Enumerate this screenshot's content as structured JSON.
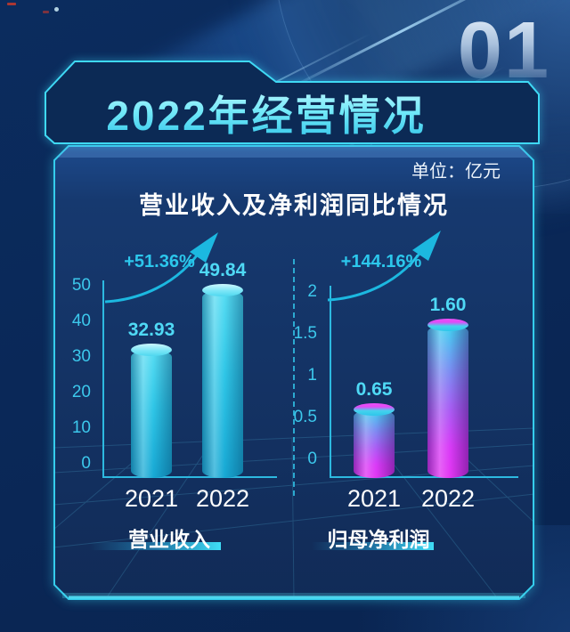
{
  "page": {
    "section_number": "01",
    "title": "2022年经营情况",
    "unit_label": "单位：亿元"
  },
  "colors": {
    "accent_cyan": "#36d6f2",
    "tick_text": "#3cc8ec",
    "value_text": "#4fd9f5",
    "growth_text": "#2cc7ec",
    "axis_line": "#2db9e0",
    "bar_cyan": "#2fc6e7",
    "bar_magenta": "#e336f2",
    "panel_fill": "#16386f",
    "background": "#0a2858"
  },
  "chart_data": {
    "type": "bar",
    "title": "营业收入及净利润同比情况",
    "unit": "亿元",
    "grid": true,
    "legend": "none",
    "charts": [
      {
        "name": "营业收入",
        "categories": [
          "2021",
          "2022"
        ],
        "values": [
          32.93,
          49.84
        ],
        "value_labels": [
          "32.93",
          "49.84"
        ],
        "growth": "+51.36%",
        "ylim": [
          0,
          50
        ],
        "ticks": [
          "50",
          "40",
          "30",
          "20",
          "10",
          "0"
        ],
        "bar_style": "cyan-cylinder"
      },
      {
        "name": "归母净利润",
        "categories": [
          "2021",
          "2022"
        ],
        "values": [
          0.65,
          1.6
        ],
        "value_labels": [
          "0.65",
          "1.60"
        ],
        "growth": "+144.16%",
        "ylim": [
          0,
          2
        ],
        "ticks": [
          "2",
          "1.5",
          "1",
          "0.5",
          "0"
        ],
        "bar_style": "cyan-magenta-cylinder"
      }
    ]
  }
}
